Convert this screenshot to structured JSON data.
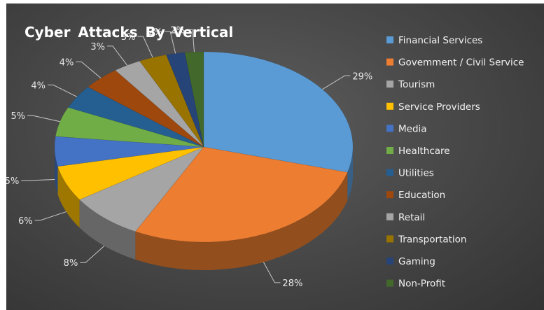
{
  "chart_data": {
    "type": "pie",
    "title": "Cyber Attacks By Vertical",
    "categories": [
      "Financial Services",
      "Govemment / Civil Service",
      "Tourism",
      "Service Providers",
      "Media",
      "Healthcare",
      "Utilities",
      "Education",
      "Retail",
      "Transportation",
      "Gaming",
      "Non-Profit"
    ],
    "values": [
      29,
      28,
      3,
      6,
      5,
      5,
      4,
      4,
      8,
      3,
      2,
      2
    ],
    "value_labels": [
      "29%",
      "28%",
      "3%",
      "6%",
      "5%",
      "5%",
      "4%",
      "4%",
      "8%",
      "3%",
      "2%",
      "2%"
    ],
    "slice_order": [
      0,
      1,
      8,
      3,
      4,
      5,
      6,
      7,
      2,
      9,
      10,
      11
    ],
    "colors": [
      "#5b9bd5",
      "#ed7d31",
      "#a5a5a5",
      "#ffc000",
      "#4472c4",
      "#70ad47",
      "#255e91",
      "#9e480e",
      "#a5a5a5",
      "#997300",
      "#264478",
      "#43682b"
    ],
    "legend_position": "right",
    "style": "3d-pie",
    "background_color": "#4a4a4a"
  }
}
